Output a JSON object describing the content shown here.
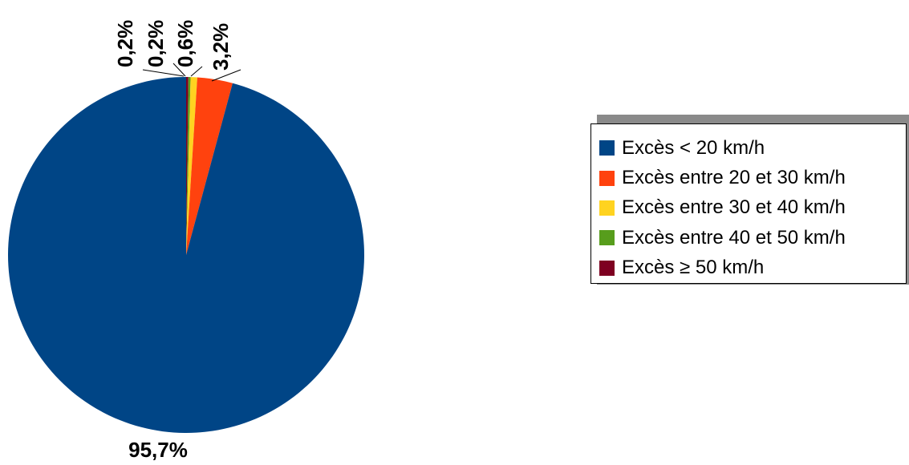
{
  "chart_data": {
    "type": "pie",
    "categories": [
      "Excès < 20 km/h",
      "Excès entre 20 et 30 km/h",
      "Excès entre 30 et 40 km/h",
      "Excès entre 40 et 50 km/h",
      "Excès ≥ 50 km/h"
    ],
    "values": [
      95.7,
      3.2,
      0.6,
      0.2,
      0.2
    ],
    "labels": [
      "95,7%",
      "3,2%",
      "0,6%",
      "0,2%",
      "0,2%"
    ],
    "colors": [
      "#004586",
      "#ff420e",
      "#ffd320",
      "#579d1c",
      "#7e0021"
    ],
    "legend_position": "right"
  }
}
